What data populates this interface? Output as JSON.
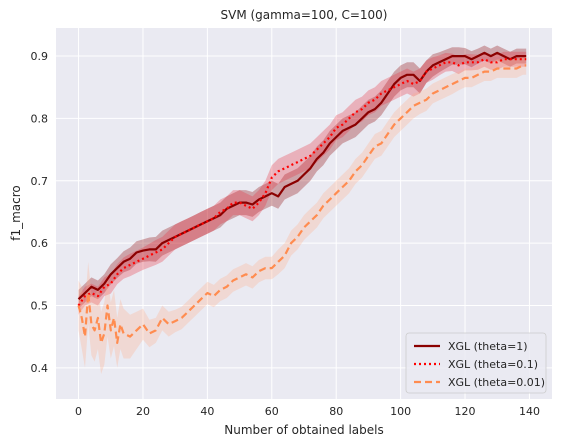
{
  "chart_data": {
    "type": "line",
    "title": "SVM (gamma=100, C=100)",
    "xlabel": "Number of obtained labels",
    "ylabel": "f1_macro",
    "xlim": [
      -7,
      147
    ],
    "ylim": [
      0.35,
      0.945
    ],
    "x_ticks": [
      0,
      20,
      40,
      60,
      80,
      100,
      120,
      140
    ],
    "y_ticks": [
      0.4,
      0.5,
      0.6,
      0.7,
      0.8,
      0.9
    ],
    "grid": true,
    "background": "#eaeaf2",
    "legend_position": "lower-right",
    "series": [
      {
        "name": "XGL (theta=1)",
        "color": "#8b0000",
        "band_color": "#8b0000",
        "style": "solid",
        "x": [
          0,
          2,
          4,
          6,
          8,
          10,
          12,
          14,
          16,
          18,
          20,
          22,
          24,
          26,
          28,
          30,
          32,
          34,
          36,
          38,
          40,
          42,
          44,
          46,
          48,
          50,
          52,
          54,
          56,
          58,
          60,
          62,
          64,
          66,
          68,
          70,
          72,
          74,
          76,
          78,
          80,
          82,
          84,
          86,
          88,
          90,
          92,
          94,
          96,
          98,
          100,
          102,
          104,
          106,
          108,
          110,
          112,
          114,
          116,
          118,
          120,
          122,
          124,
          126,
          128,
          130,
          132,
          134,
          136,
          138,
          139
        ],
        "y": [
          0.51,
          0.52,
          0.53,
          0.525,
          0.535,
          0.55,
          0.56,
          0.57,
          0.575,
          0.585,
          0.588,
          0.59,
          0.59,
          0.6,
          0.605,
          0.61,
          0.615,
          0.62,
          0.625,
          0.63,
          0.635,
          0.64,
          0.645,
          0.655,
          0.66,
          0.665,
          0.665,
          0.662,
          0.67,
          0.675,
          0.68,
          0.675,
          0.69,
          0.695,
          0.7,
          0.71,
          0.72,
          0.735,
          0.745,
          0.76,
          0.77,
          0.78,
          0.785,
          0.79,
          0.8,
          0.81,
          0.815,
          0.825,
          0.84,
          0.855,
          0.865,
          0.87,
          0.87,
          0.86,
          0.875,
          0.885,
          0.89,
          0.895,
          0.9,
          0.9,
          0.9,
          0.895,
          0.9,
          0.905,
          0.9,
          0.905,
          0.9,
          0.895,
          0.9,
          0.9,
          0.9
        ],
        "band": [
          0.015,
          0.015,
          0.015,
          0.015,
          0.015,
          0.016,
          0.016,
          0.017,
          0.018,
          0.018,
          0.018,
          0.019,
          0.02,
          0.02,
          0.02,
          0.02,
          0.02,
          0.02,
          0.02,
          0.02,
          0.02,
          0.02,
          0.02,
          0.02,
          0.02,
          0.02,
          0.02,
          0.02,
          0.02,
          0.02,
          0.02,
          0.02,
          0.02,
          0.02,
          0.02,
          0.02,
          0.02,
          0.02,
          0.02,
          0.02,
          0.02,
          0.02,
          0.02,
          0.02,
          0.02,
          0.02,
          0.02,
          0.02,
          0.02,
          0.02,
          0.02,
          0.02,
          0.02,
          0.02,
          0.018,
          0.018,
          0.016,
          0.015,
          0.014,
          0.014,
          0.013,
          0.013,
          0.012,
          0.012,
          0.012,
          0.012,
          0.012,
          0.012,
          0.012,
          0.012,
          0.012
        ]
      },
      {
        "name": "XGL (theta=0.1)",
        "color": "#ff0000",
        "band_color": "#e8303a",
        "style": "dotted",
        "x": [
          0,
          2,
          4,
          6,
          8,
          10,
          12,
          14,
          16,
          18,
          20,
          22,
          24,
          26,
          28,
          30,
          32,
          34,
          36,
          38,
          40,
          42,
          44,
          46,
          48,
          50,
          52,
          54,
          56,
          58,
          60,
          62,
          64,
          66,
          68,
          70,
          72,
          74,
          76,
          78,
          80,
          82,
          84,
          86,
          88,
          90,
          92,
          94,
          96,
          98,
          100,
          102,
          104,
          106,
          108,
          110,
          112,
          114,
          116,
          118,
          120,
          122,
          124,
          126,
          128,
          130,
          132,
          134,
          136,
          138,
          139
        ],
        "y": [
          0.5,
          0.515,
          0.52,
          0.515,
          0.53,
          0.535,
          0.55,
          0.56,
          0.565,
          0.57,
          0.575,
          0.58,
          0.585,
          0.59,
          0.6,
          0.61,
          0.615,
          0.62,
          0.625,
          0.63,
          0.635,
          0.64,
          0.65,
          0.655,
          0.665,
          0.665,
          0.66,
          0.655,
          0.665,
          0.68,
          0.705,
          0.715,
          0.72,
          0.725,
          0.73,
          0.735,
          0.74,
          0.75,
          0.76,
          0.77,
          0.785,
          0.79,
          0.8,
          0.81,
          0.815,
          0.825,
          0.83,
          0.84,
          0.845,
          0.85,
          0.855,
          0.86,
          0.855,
          0.86,
          0.875,
          0.88,
          0.885,
          0.89,
          0.89,
          0.885,
          0.89,
          0.89,
          0.89,
          0.895,
          0.89,
          0.89,
          0.895,
          0.895,
          0.895,
          0.895,
          0.895
        ],
        "band": [
          0.015,
          0.015,
          0.015,
          0.015,
          0.015,
          0.016,
          0.016,
          0.017,
          0.018,
          0.018,
          0.018,
          0.019,
          0.02,
          0.02,
          0.02,
          0.02,
          0.02,
          0.02,
          0.02,
          0.02,
          0.02,
          0.02,
          0.02,
          0.02,
          0.02,
          0.02,
          0.02,
          0.02,
          0.02,
          0.02,
          0.02,
          0.02,
          0.02,
          0.02,
          0.02,
          0.02,
          0.02,
          0.02,
          0.02,
          0.02,
          0.02,
          0.02,
          0.02,
          0.02,
          0.02,
          0.02,
          0.02,
          0.02,
          0.02,
          0.02,
          0.02,
          0.02,
          0.02,
          0.02,
          0.018,
          0.018,
          0.016,
          0.015,
          0.014,
          0.014,
          0.013,
          0.013,
          0.012,
          0.012,
          0.012,
          0.012,
          0.012,
          0.012,
          0.012,
          0.012,
          0.012
        ]
      },
      {
        "name": "XGL (theta=0.01)",
        "color": "#ff8c50",
        "band_color": "#ffb08a",
        "style": "dashed",
        "x": [
          0,
          1,
          2,
          3,
          4,
          5,
          6,
          7,
          8,
          9,
          10,
          11,
          12,
          13,
          14,
          16,
          18,
          20,
          22,
          24,
          26,
          28,
          30,
          32,
          34,
          36,
          38,
          40,
          42,
          44,
          46,
          48,
          50,
          52,
          54,
          56,
          58,
          60,
          62,
          64,
          66,
          68,
          70,
          72,
          74,
          76,
          78,
          80,
          82,
          84,
          86,
          88,
          90,
          92,
          94,
          96,
          98,
          100,
          102,
          104,
          106,
          108,
          110,
          112,
          114,
          116,
          118,
          120,
          122,
          124,
          126,
          128,
          130,
          132,
          134,
          136,
          138,
          139
        ],
        "y": [
          0.5,
          0.48,
          0.45,
          0.52,
          0.47,
          0.46,
          0.48,
          0.44,
          0.455,
          0.5,
          0.46,
          0.48,
          0.44,
          0.47,
          0.455,
          0.45,
          0.46,
          0.47,
          0.455,
          0.46,
          0.48,
          0.47,
          0.475,
          0.48,
          0.49,
          0.5,
          0.51,
          0.52,
          0.515,
          0.525,
          0.53,
          0.54,
          0.545,
          0.55,
          0.545,
          0.555,
          0.56,
          0.56,
          0.57,
          0.58,
          0.6,
          0.61,
          0.625,
          0.635,
          0.645,
          0.66,
          0.67,
          0.68,
          0.69,
          0.7,
          0.715,
          0.725,
          0.74,
          0.755,
          0.76,
          0.775,
          0.79,
          0.8,
          0.81,
          0.82,
          0.825,
          0.83,
          0.84,
          0.845,
          0.85,
          0.855,
          0.86,
          0.865,
          0.865,
          0.87,
          0.875,
          0.875,
          0.88,
          0.88,
          0.88,
          0.88,
          0.885,
          0.885
        ],
        "band": [
          0.04,
          0.05,
          0.05,
          0.05,
          0.05,
          0.05,
          0.05,
          0.05,
          0.05,
          0.05,
          0.045,
          0.045,
          0.04,
          0.04,
          0.04,
          0.035,
          0.03,
          0.025,
          0.022,
          0.02,
          0.02,
          0.02,
          0.018,
          0.018,
          0.018,
          0.018,
          0.018,
          0.018,
          0.018,
          0.018,
          0.018,
          0.018,
          0.018,
          0.018,
          0.018,
          0.018,
          0.018,
          0.018,
          0.02,
          0.02,
          0.02,
          0.02,
          0.02,
          0.02,
          0.02,
          0.02,
          0.02,
          0.02,
          0.02,
          0.02,
          0.02,
          0.02,
          0.02,
          0.02,
          0.02,
          0.02,
          0.02,
          0.02,
          0.02,
          0.02,
          0.018,
          0.018,
          0.016,
          0.016,
          0.016,
          0.016,
          0.015,
          0.015,
          0.015,
          0.015,
          0.015,
          0.015,
          0.015,
          0.015,
          0.015,
          0.015,
          0.015,
          0.015
        ]
      }
    ]
  }
}
